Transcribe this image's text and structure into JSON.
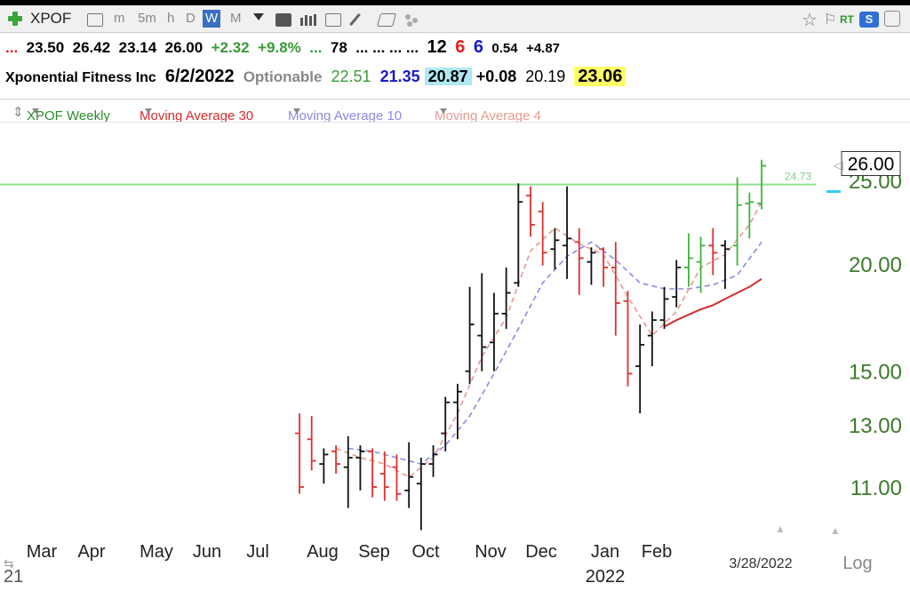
{
  "toolbar": {
    "symbol": "XPOF",
    "timeframes": [
      "m",
      "5m",
      "h",
      "D",
      "W",
      "M"
    ],
    "selected_timeframe": "W",
    "right_labels": [
      "RT",
      "S"
    ]
  },
  "quote": {
    "prefix": "...",
    "open": "23.50",
    "high": "26.42",
    "low": "23.14",
    "close": "26.00",
    "change": "+2.32",
    "change_pct": "+9.8%",
    "dots_green": "...",
    "v1": "78",
    "dots": "... ... ... ...",
    "n1": "12",
    "n2": "6",
    "n3": "6",
    "n4": "0.54",
    "n5": "+4.87",
    "company": "Xponential Fitness Inc",
    "date": "6/2/2022",
    "optionable": "Optionable",
    "p1": "22.51",
    "p2": "21.35",
    "p3": "20.87",
    "p4": "+0.08",
    "p5": "20.19",
    "p6": "23.06",
    "colors": {
      "green": "#3a9a3a",
      "red": "#e02020",
      "blue": "#1a1acc",
      "cyan": "#aee8f2",
      "yellow": "#ffff66"
    }
  },
  "studies": [
    {
      "label": "XPOF Weekly",
      "color": "#2e8b2e"
    },
    {
      "label": "Moving Average 30",
      "color": "#d62c2c"
    },
    {
      "label": "Moving Average 10",
      "color": "#8a8ae6"
    },
    {
      "label": "Moving Average 4",
      "color": "#e69a90"
    }
  ],
  "chart_data": {
    "type": "ohlc",
    "scale": "log",
    "ylim": [
      10,
      27
    ],
    "yticks": [
      "11.00",
      "13.00",
      "15.00",
      "20.00",
      "25.00"
    ],
    "last_price_label": "26.00",
    "hline": {
      "value": 24.73,
      "label": "24.73",
      "color": "#8fe08f"
    },
    "x_month_labels": [
      "Mar",
      "Apr",
      "May",
      "Jun",
      "Jul",
      "Aug",
      "Sep",
      "Oct",
      "Nov",
      "Dec",
      "Jan",
      "Feb"
    ],
    "year_label": "2022",
    "start_label": "21",
    "cursor_date_label": "3/28/2022",
    "scale_label": "Log",
    "bars": [
      {
        "date": "2021-08-02",
        "o": 12.7,
        "h": 13.4,
        "l": 10.8,
        "c": 11.0,
        "color": "red"
      },
      {
        "date": "2021-08-09",
        "o": 12.5,
        "h": 13.3,
        "l": 11.5,
        "c": 11.8,
        "color": "red"
      },
      {
        "date": "2021-08-16",
        "o": 11.7,
        "h": 12.2,
        "l": 11.1,
        "c": 12.0,
        "color": "black"
      },
      {
        "date": "2021-08-23",
        "o": 12.1,
        "h": 12.3,
        "l": 11.4,
        "c": 11.7,
        "color": "red"
      },
      {
        "date": "2021-08-30",
        "o": 11.6,
        "h": 12.6,
        "l": 10.4,
        "c": 11.9,
        "color": "black"
      },
      {
        "date": "2021-09-06",
        "o": 11.9,
        "h": 12.3,
        "l": 10.9,
        "c": 12.1,
        "color": "black"
      },
      {
        "date": "2021-09-13",
        "o": 12.1,
        "h": 12.2,
        "l": 10.7,
        "c": 11.0,
        "color": "red"
      },
      {
        "date": "2021-09-20",
        "o": 11.4,
        "h": 12.1,
        "l": 10.6,
        "c": 11.0,
        "color": "red"
      },
      {
        "date": "2021-09-27",
        "o": 11.6,
        "h": 12.0,
        "l": 10.6,
        "c": 10.8,
        "color": "red"
      },
      {
        "date": "2021-10-04",
        "o": 10.9,
        "h": 12.4,
        "l": 10.4,
        "c": 11.3,
        "color": "black"
      },
      {
        "date": "2021-10-11",
        "o": 11.1,
        "h": 11.9,
        "l": 9.8,
        "c": 11.7,
        "color": "black"
      },
      {
        "date": "2021-10-18",
        "o": 11.7,
        "h": 12.3,
        "l": 11.3,
        "c": 12.0,
        "color": "black"
      },
      {
        "date": "2021-10-25",
        "o": 12.7,
        "h": 14.0,
        "l": 12.1,
        "c": 13.8,
        "color": "black"
      },
      {
        "date": "2021-11-01",
        "o": 13.8,
        "h": 14.5,
        "l": 12.5,
        "c": 14.2,
        "color": "black"
      },
      {
        "date": "2021-11-08",
        "o": 15.0,
        "h": 18.8,
        "l": 14.5,
        "c": 17.0,
        "color": "black"
      },
      {
        "date": "2021-11-15",
        "o": 16.5,
        "h": 19.5,
        "l": 15.0,
        "c": 16.0,
        "color": "black"
      },
      {
        "date": "2021-11-22",
        "o": 16.2,
        "h": 18.5,
        "l": 15.0,
        "c": 17.5,
        "color": "black"
      },
      {
        "date": "2021-11-29",
        "o": 17.5,
        "h": 19.8,
        "l": 16.8,
        "c": 18.5,
        "color": "black"
      },
      {
        "date": "2021-12-06",
        "o": 19.0,
        "h": 24.8,
        "l": 18.8,
        "c": 23.6,
        "color": "black"
      },
      {
        "date": "2021-12-13",
        "o": 24.0,
        "h": 24.6,
        "l": 21.5,
        "c": 22.2,
        "color": "red"
      },
      {
        "date": "2021-12-20",
        "o": 23.0,
        "h": 23.6,
        "l": 19.9,
        "c": 20.6,
        "color": "red"
      },
      {
        "date": "2021-12-27",
        "o": 20.8,
        "h": 22.0,
        "l": 19.7,
        "c": 21.3,
        "color": "black"
      },
      {
        "date": "2022-01-03",
        "o": 21.0,
        "h": 24.6,
        "l": 19.2,
        "c": 21.4,
        "color": "black"
      },
      {
        "date": "2022-01-10",
        "o": 21.2,
        "h": 22.0,
        "l": 18.4,
        "c": 20.3,
        "color": "red"
      },
      {
        "date": "2022-01-17",
        "o": 20.1,
        "h": 20.9,
        "l": 18.9,
        "c": 20.6,
        "color": "black"
      },
      {
        "date": "2022-01-24",
        "o": 20.8,
        "h": 20.9,
        "l": 18.8,
        "c": 19.8,
        "color": "red"
      },
      {
        "date": "2022-01-31",
        "o": 19.8,
        "h": 21.2,
        "l": 16.5,
        "c": 18.0,
        "color": "red"
      },
      {
        "date": "2022-02-07",
        "o": 18.1,
        "h": 18.6,
        "l": 14.4,
        "c": 14.9,
        "color": "red"
      },
      {
        "date": "2022-02-14",
        "o": 15.2,
        "h": 17.0,
        "l": 13.4,
        "c": 16.1,
        "color": "black"
      },
      {
        "date": "2022-02-21",
        "o": 16.5,
        "h": 17.6,
        "l": 15.2,
        "c": 17.2,
        "color": "black"
      },
      {
        "date": "2022-02-28",
        "o": 17.2,
        "h": 18.8,
        "l": 16.8,
        "c": 18.2,
        "color": "black"
      },
      {
        "date": "2022-03-07",
        "o": 18.3,
        "h": 20.2,
        "l": 17.8,
        "c": 19.8,
        "color": "black"
      },
      {
        "date": "2022-03-14",
        "o": 19.8,
        "h": 21.7,
        "l": 18.8,
        "c": 20.3,
        "color": "green"
      },
      {
        "date": "2022-03-21",
        "o": 20.1,
        "h": 21.5,
        "l": 18.5,
        "c": 21.0,
        "color": "green"
      },
      {
        "date": "2022-03-28",
        "o": 21.0,
        "h": 22.0,
        "l": 19.4,
        "c": 20.6,
        "color": "red"
      },
      {
        "date": "2022-04-04",
        "o": 21.0,
        "h": 21.3,
        "l": 18.7,
        "c": 20.8,
        "color": "black"
      },
      {
        "date": "2022-04-11",
        "o": 21.0,
        "h": 25.2,
        "l": 19.9,
        "c": 23.4,
        "color": "green"
      },
      {
        "date": "2022-04-18",
        "o": 23.5,
        "h": 24.2,
        "l": 21.4,
        "c": 23.6,
        "color": "green"
      },
      {
        "date": "2022-04-25",
        "o": 23.5,
        "h": 26.42,
        "l": 23.14,
        "c": 26.0,
        "color": "green"
      }
    ],
    "ma_series": [
      {
        "name": "Moving Average 30",
        "color": "#d62c2c",
        "dash": false,
        "values": [
          {
            "date": "2022-02-28",
            "v": 16.9
          },
          {
            "date": "2022-03-07",
            "v": 17.2
          },
          {
            "date": "2022-03-14",
            "v": 17.45
          },
          {
            "date": "2022-03-21",
            "v": 17.7
          },
          {
            "date": "2022-03-28",
            "v": 17.9
          },
          {
            "date": "2022-04-04",
            "v": 18.2
          },
          {
            "date": "2022-04-11",
            "v": 18.5
          },
          {
            "date": "2022-04-18",
            "v": 18.8
          },
          {
            "date": "2022-04-25",
            "v": 19.2
          }
        ]
      },
      {
        "name": "Moving Average 10",
        "color": "#8a8ae6",
        "dash": true,
        "values": [
          {
            "date": "2021-08-30",
            "v": 12.2
          },
          {
            "date": "2021-09-13",
            "v": 12.1
          },
          {
            "date": "2021-09-27",
            "v": 11.9
          },
          {
            "date": "2021-10-11",
            "v": 11.7
          },
          {
            "date": "2021-10-25",
            "v": 12.3
          },
          {
            "date": "2021-11-08",
            "v": 13.3
          },
          {
            "date": "2021-11-22",
            "v": 14.9
          },
          {
            "date": "2021-12-06",
            "v": 16.8
          },
          {
            "date": "2021-12-20",
            "v": 19.0
          },
          {
            "date": "2022-01-03",
            "v": 20.4
          },
          {
            "date": "2022-01-17",
            "v": 21.2
          },
          {
            "date": "2022-01-31",
            "v": 20.2
          },
          {
            "date": "2022-02-14",
            "v": 19.0
          },
          {
            "date": "2022-02-28",
            "v": 18.7
          },
          {
            "date": "2022-03-14",
            "v": 18.7
          },
          {
            "date": "2022-03-28",
            "v": 18.9
          },
          {
            "date": "2022-04-11",
            "v": 19.4
          },
          {
            "date": "2022-04-25",
            "v": 21.2
          }
        ]
      },
      {
        "name": "Moving Average 4",
        "color": "#e69a90",
        "dash": true,
        "values": [
          {
            "date": "2021-08-23",
            "v": 12.2
          },
          {
            "date": "2021-09-06",
            "v": 11.9
          },
          {
            "date": "2021-09-20",
            "v": 11.7
          },
          {
            "date": "2021-10-04",
            "v": 11.3
          },
          {
            "date": "2021-10-18",
            "v": 11.9
          },
          {
            "date": "2021-11-01",
            "v": 13.4
          },
          {
            "date": "2021-11-15",
            "v": 15.6
          },
          {
            "date": "2021-11-29",
            "v": 17.3
          },
          {
            "date": "2021-12-13",
            "v": 20.7
          },
          {
            "date": "2021-12-27",
            "v": 22.0
          },
          {
            "date": "2022-01-10",
            "v": 21.1
          },
          {
            "date": "2022-01-24",
            "v": 20.5
          },
          {
            "date": "2022-02-07",
            "v": 18.3
          },
          {
            "date": "2022-02-21",
            "v": 16.5
          },
          {
            "date": "2022-03-07",
            "v": 17.6
          },
          {
            "date": "2022-03-21",
            "v": 19.8
          },
          {
            "date": "2022-04-04",
            "v": 20.5
          },
          {
            "date": "2022-04-18",
            "v": 22.2
          },
          {
            "date": "2022-04-25",
            "v": 23.6
          }
        ]
      }
    ]
  }
}
